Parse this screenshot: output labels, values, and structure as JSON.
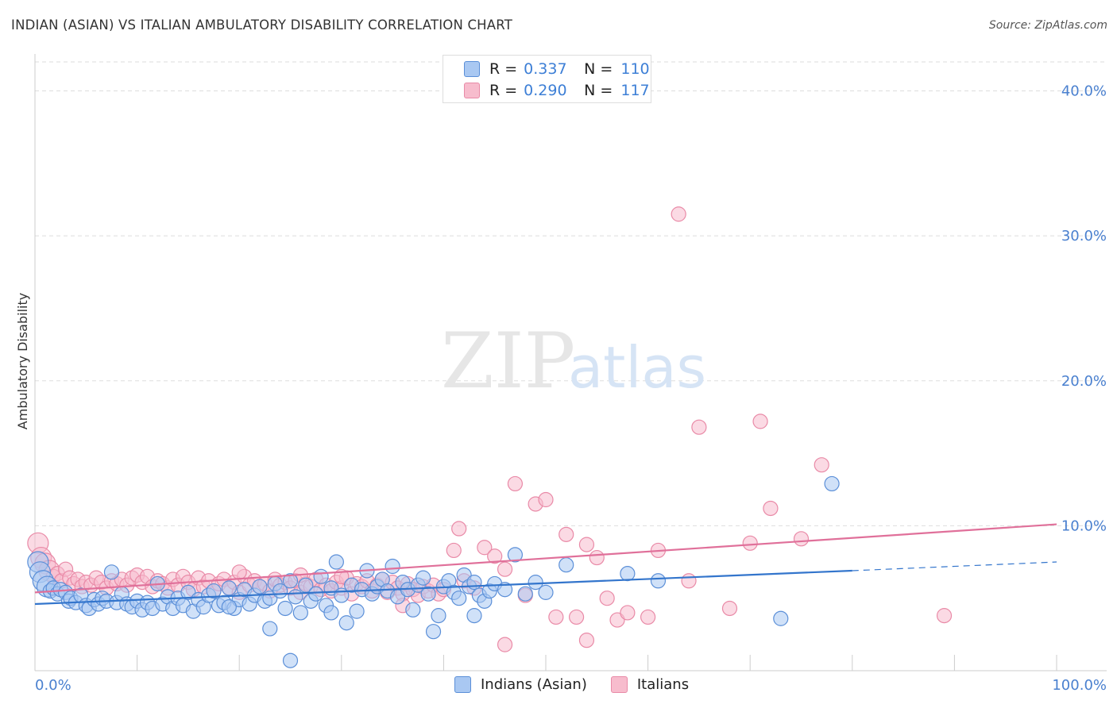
{
  "title": "INDIAN (ASIAN) VS ITALIAN AMBULATORY DISABILITY CORRELATION CHART",
  "source": "Source: ZipAtlas.com",
  "watermark": {
    "zip": "ZIP",
    "atlas": "atlas"
  },
  "legend": {
    "rows": [
      {
        "r_label": "R =",
        "r_value": "0.337",
        "n_label": "N =",
        "n_value": "110"
      },
      {
        "r_label": "R =",
        "r_value": "0.290",
        "n_label": "N =",
        "n_value": "117"
      }
    ]
  },
  "bottom_legend": [
    "Indians (Asian)",
    "Italians"
  ],
  "colors": {
    "blue_fill": "#a9c8f2",
    "blue_stroke": "#5b8fd8",
    "blue_line": "#3375cc",
    "pink_fill": "#f7bccd",
    "pink_stroke": "#e98aa7",
    "pink_line": "#e0709a",
    "tick_text": "#4a80cf",
    "grid": "#dddddd"
  },
  "chart_data": {
    "type": "scatter",
    "title": "INDIAN (ASIAN) VS ITALIAN AMBULATORY DISABILITY CORRELATION CHART",
    "xlabel": "",
    "ylabel": "Ambulatory Disability",
    "xlim": [
      0,
      100
    ],
    "ylim": [
      0,
      42
    ],
    "x_tick_labels": [
      "0.0%",
      "100.0%"
    ],
    "y_ticks": [
      10,
      20,
      30,
      40
    ],
    "y_tick_labels": [
      "10.0%",
      "20.0%",
      "30.0%",
      "40.0%"
    ],
    "grid": true,
    "series": [
      {
        "name": "Indians (Asian)",
        "r": 0.337,
        "n": 110,
        "trend": {
          "x0": 0,
          "y0": 4.6,
          "x1": 80,
          "y1": 6.9,
          "dashed_to": 100,
          "dashed_y": 7.5
        },
        "points": [
          [
            0.3,
            7.5
          ],
          [
            0.5,
            6.8
          ],
          [
            0.8,
            6.2
          ],
          [
            1.2,
            5.8
          ],
          [
            1.5,
            5.5
          ],
          [
            1.8,
            5.7
          ],
          [
            2.2,
            5.3
          ],
          [
            2.5,
            5.6
          ],
          [
            3,
            5.4
          ],
          [
            3.3,
            4.8
          ],
          [
            3.5,
            5.0
          ],
          [
            4,
            4.7
          ],
          [
            4.5,
            5.2
          ],
          [
            5,
            4.5
          ],
          [
            5.3,
            4.3
          ],
          [
            5.8,
            4.9
          ],
          [
            6.2,
            4.6
          ],
          [
            6.6,
            5.0
          ],
          [
            7,
            4.8
          ],
          [
            7.5,
            6.8
          ],
          [
            8,
            4.7
          ],
          [
            8.5,
            5.3
          ],
          [
            9,
            4.6
          ],
          [
            9.5,
            4.4
          ],
          [
            10,
            4.8
          ],
          [
            10.5,
            4.2
          ],
          [
            11,
            4.7
          ],
          [
            11.5,
            4.3
          ],
          [
            12,
            6.0
          ],
          [
            12.5,
            4.6
          ],
          [
            13,
            5.1
          ],
          [
            13.5,
            4.3
          ],
          [
            14,
            5.0
          ],
          [
            14.5,
            4.5
          ],
          [
            15,
            5.4
          ],
          [
            15.5,
            4.1
          ],
          [
            16,
            4.9
          ],
          [
            16.5,
            4.4
          ],
          [
            17,
            5.2
          ],
          [
            17.5,
            5.5
          ],
          [
            18,
            4.5
          ],
          [
            18.5,
            4.7
          ],
          [
            19,
            5.7
          ],
          [
            19.5,
            4.3
          ],
          [
            20,
            4.9
          ],
          [
            20.5,
            5.6
          ],
          [
            21,
            4.6
          ],
          [
            21.5,
            5.2
          ],
          [
            22,
            5.8
          ],
          [
            22.5,
            4.8
          ],
          [
            23,
            5.0
          ],
          [
            23.5,
            6.0
          ],
          [
            24,
            5.5
          ],
          [
            24.5,
            4.3
          ],
          [
            25,
            6.2
          ],
          [
            25.5,
            5.1
          ],
          [
            26,
            4.0
          ],
          [
            26.5,
            5.9
          ],
          [
            27,
            4.8
          ],
          [
            27.5,
            5.3
          ],
          [
            28,
            6.5
          ],
          [
            28.5,
            4.5
          ],
          [
            29,
            5.7
          ],
          [
            29.5,
            7.5
          ],
          [
            30,
            5.2
          ],
          [
            30.5,
            3.3
          ],
          [
            31,
            5.9
          ],
          [
            31.5,
            4.1
          ],
          [
            32,
            5.6
          ],
          [
            32.5,
            6.9
          ],
          [
            33,
            5.3
          ],
          [
            33.5,
            5.8
          ],
          [
            34,
            6.3
          ],
          [
            34.5,
            5.5
          ],
          [
            35,
            7.2
          ],
          [
            35.5,
            5.1
          ],
          [
            36,
            6.1
          ],
          [
            36.5,
            5.6
          ],
          [
            37,
            4.2
          ],
          [
            37.5,
            5.9
          ],
          [
            38,
            6.4
          ],
          [
            38.5,
            5.3
          ],
          [
            39,
            2.7
          ],
          [
            39.5,
            3.8
          ],
          [
            40,
            5.8
          ],
          [
            40.5,
            6.2
          ],
          [
            41,
            5.4
          ],
          [
            41.5,
            5.0
          ],
          [
            42,
            6.6
          ],
          [
            42.5,
            5.8
          ],
          [
            43,
            6.1
          ],
          [
            43.5,
            5.2
          ],
          [
            44,
            4.8
          ],
          [
            44.5,
            5.5
          ],
          [
            45,
            6.0
          ],
          [
            46,
            5.6
          ],
          [
            47,
            8.0
          ],
          [
            48,
            5.3
          ],
          [
            49,
            6.1
          ],
          [
            50,
            5.4
          ],
          [
            52,
            7.3
          ],
          [
            58,
            6.7
          ],
          [
            61,
            6.2
          ],
          [
            73,
            3.6
          ],
          [
            78,
            12.9
          ],
          [
            25,
            0.7
          ],
          [
            29,
            4.0
          ],
          [
            19,
            4.4
          ],
          [
            23,
            2.9
          ],
          [
            43,
            3.8
          ]
        ]
      },
      {
        "name": "Italians",
        "r": 0.29,
        "n": 117,
        "trend": {
          "x0": 0,
          "y0": 5.4,
          "x1": 100,
          "y1": 10.1
        },
        "points": [
          [
            0.3,
            8.8
          ],
          [
            0.6,
            7.8
          ],
          [
            1,
            7.4
          ],
          [
            1.4,
            6.9
          ],
          [
            1.8,
            6.5
          ],
          [
            2.2,
            6.7
          ],
          [
            2.6,
            6.2
          ],
          [
            3,
            7.0
          ],
          [
            3.4,
            6.4
          ],
          [
            3.8,
            6.0
          ],
          [
            4.2,
            6.3
          ],
          [
            4.6,
            5.8
          ],
          [
            5,
            6.1
          ],
          [
            5.5,
            5.9
          ],
          [
            6,
            6.4
          ],
          [
            6.5,
            6.1
          ],
          [
            7,
            5.7
          ],
          [
            7.5,
            6.2
          ],
          [
            8,
            6.0
          ],
          [
            8.5,
            6.3
          ],
          [
            9,
            5.9
          ],
          [
            9.5,
            6.4
          ],
          [
            10,
            6.6
          ],
          [
            10.5,
            6.1
          ],
          [
            11,
            6.5
          ],
          [
            11.5,
            5.8
          ],
          [
            12,
            6.2
          ],
          [
            12.5,
            6.0
          ],
          [
            13,
            5.7
          ],
          [
            13.5,
            6.3
          ],
          [
            14,
            5.9
          ],
          [
            14.5,
            6.5
          ],
          [
            15,
            6.1
          ],
          [
            15.5,
            5.6
          ],
          [
            16,
            6.4
          ],
          [
            16.5,
            5.8
          ],
          [
            17,
            6.2
          ],
          [
            17.5,
            5.5
          ],
          [
            18,
            6.0
          ],
          [
            18.5,
            6.3
          ],
          [
            19,
            5.7
          ],
          [
            19.5,
            6.1
          ],
          [
            20,
            5.4
          ],
          [
            20.5,
            6.5
          ],
          [
            21,
            5.9
          ],
          [
            21.5,
            6.2
          ],
          [
            22,
            5.8
          ],
          [
            22.5,
            6.0
          ],
          [
            23,
            5.5
          ],
          [
            23.5,
            6.3
          ],
          [
            24,
            5.9
          ],
          [
            24.5,
            6.1
          ],
          [
            25,
            5.7
          ],
          [
            25.5,
            6.2
          ],
          [
            26,
            5.4
          ],
          [
            26.5,
            6.0
          ],
          [
            27,
            5.8
          ],
          [
            27.5,
            6.3
          ],
          [
            28,
            5.6
          ],
          [
            28.5,
            5.9
          ],
          [
            29,
            5.5
          ],
          [
            29.5,
            6.1
          ],
          [
            30,
            5.7
          ],
          [
            30.5,
            6.4
          ],
          [
            31,
            5.3
          ],
          [
            31.5,
            6.0
          ],
          [
            32,
            5.8
          ],
          [
            32.5,
            6.2
          ],
          [
            33,
            5.5
          ],
          [
            33.5,
            5.9
          ],
          [
            34,
            6.3
          ],
          [
            34.5,
            5.4
          ],
          [
            35,
            6.1
          ],
          [
            35.5,
            5.7
          ],
          [
            36,
            5.3
          ],
          [
            36.5,
            6.0
          ],
          [
            37,
            5.6
          ],
          [
            37.5,
            5.2
          ],
          [
            38,
            5.8
          ],
          [
            38.5,
            5.5
          ],
          [
            39,
            5.9
          ],
          [
            39.5,
            5.3
          ],
          [
            40,
            5.6
          ],
          [
            41,
            8.3
          ],
          [
            41.5,
            9.8
          ],
          [
            42,
            6.2
          ],
          [
            43,
            5.7
          ],
          [
            44,
            8.5
          ],
          [
            45,
            7.9
          ],
          [
            46,
            7.0
          ],
          [
            47,
            12.9
          ],
          [
            48,
            5.2
          ],
          [
            49,
            11.5
          ],
          [
            50,
            11.8
          ],
          [
            51,
            3.7
          ],
          [
            52,
            9.4
          ],
          [
            53,
            3.7
          ],
          [
            54,
            8.7
          ],
          [
            55,
            7.8
          ],
          [
            56,
            5.0
          ],
          [
            57,
            3.5
          ],
          [
            58,
            4.0
          ],
          [
            60,
            3.7
          ],
          [
            61,
            8.3
          ],
          [
            63,
            31.5
          ],
          [
            64,
            6.2
          ],
          [
            65,
            16.8
          ],
          [
            68,
            4.3
          ],
          [
            70,
            8.8
          ],
          [
            71,
            17.2
          ],
          [
            72,
            11.2
          ],
          [
            75,
            9.1
          ],
          [
            77,
            14.2
          ],
          [
            89,
            3.8
          ],
          [
            46,
            1.8
          ],
          [
            54,
            2.1
          ],
          [
            36,
            4.5
          ],
          [
            20,
            6.8
          ],
          [
            30,
            6.5
          ],
          [
            26,
            6.6
          ]
        ]
      }
    ]
  }
}
